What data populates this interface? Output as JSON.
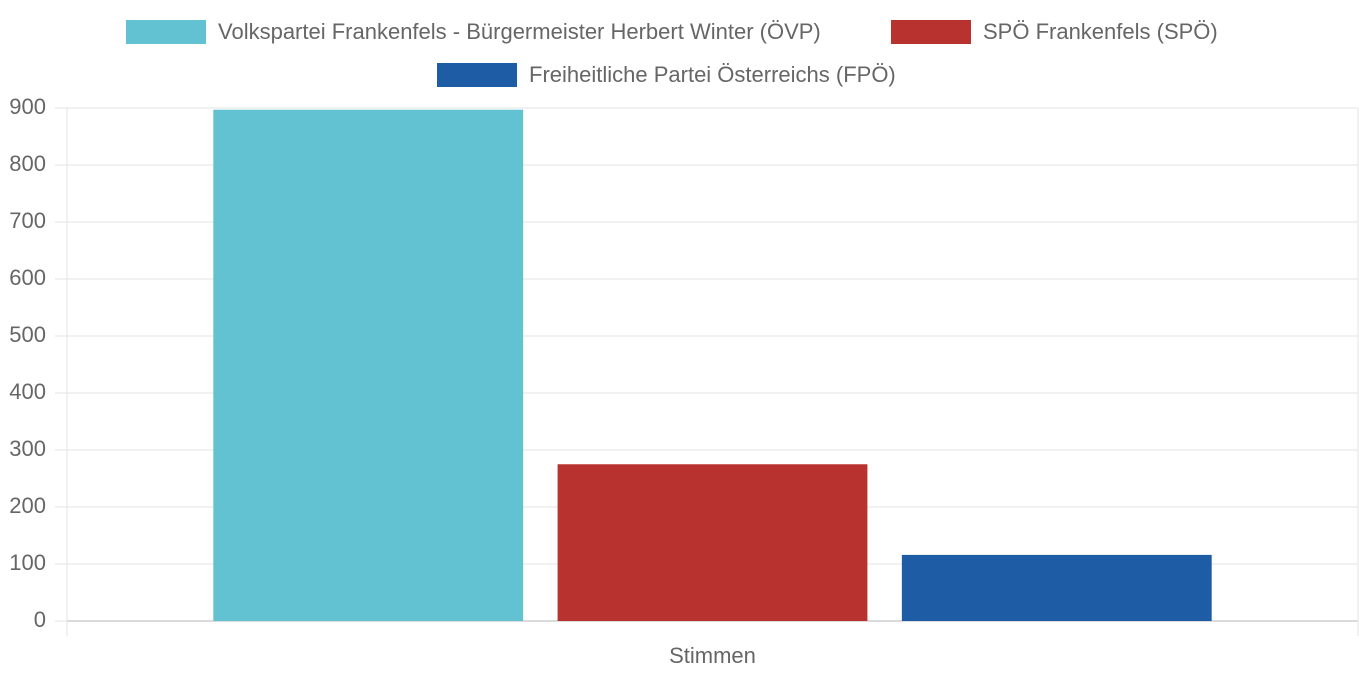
{
  "chart_data": {
    "type": "bar",
    "categories": [
      "Stimmen"
    ],
    "series": [
      {
        "name": "Volkspartei Frankenfels - Bürgermeister Herbert Winter (ÖVP)",
        "color": "#63c2d1",
        "values": [
          897
        ]
      },
      {
        "name": "SPÖ Frankenfels (SPÖ)",
        "color": "#b83330",
        "values": [
          275
        ]
      },
      {
        "name": "Freiheitliche Partei Österreichs (FPÖ)",
        "color": "#1f5ca6",
        "values": [
          116
        ]
      }
    ],
    "ylim": [
      0,
      900
    ],
    "yticks": [
      0,
      100,
      200,
      300,
      400,
      500,
      600,
      700,
      800,
      900
    ],
    "grid": true
  }
}
